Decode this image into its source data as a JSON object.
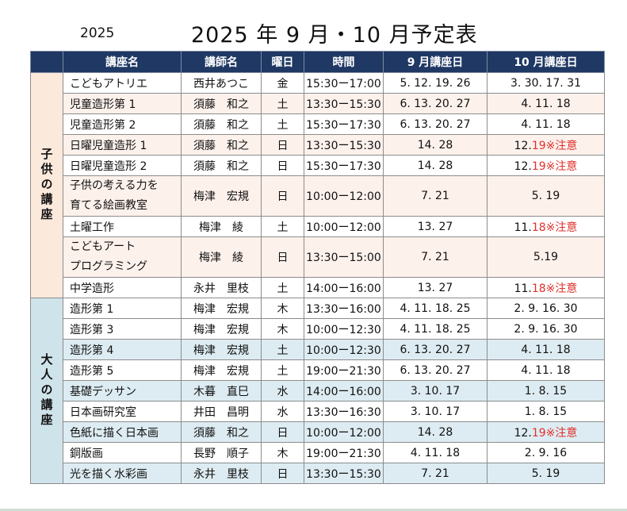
{
  "header": {
    "year": "2025",
    "title": "2025 年 9 月・10 月予定表"
  },
  "columns": [
    "講座名",
    "講師名",
    "曜日",
    "時間",
    "9 月講座日",
    "10 月講座日"
  ],
  "groups": {
    "child": "子供の講座",
    "adult": "大人の講座"
  },
  "rows": [
    {
      "course": "こどもアトリエ",
      "teacher": "西井あつこ",
      "day": "金",
      "time": "15:30ー17:00",
      "sep": "5. 12. 19. 26",
      "oct": "3. 30. 17. 31",
      "oct_note": ""
    },
    {
      "course": "児童造形第 1",
      "teacher": "須藤　和之",
      "day": "土",
      "time": "13:30ー15:30",
      "sep": "6. 13. 20. 27",
      "oct": "4. 11. 18",
      "oct_note": ""
    },
    {
      "course": "児童造形第 2",
      "teacher": "須藤　和之",
      "day": "土",
      "time": "15:30ー17:30",
      "sep": "6. 13. 20. 27",
      "oct": "4. 11. 18",
      "oct_note": ""
    },
    {
      "course": "日曜児童造形 1",
      "teacher": "須藤　和之",
      "day": "日",
      "time": "13:30ー15:30",
      "sep": "14. 28",
      "oct": "12.",
      "oct_note": "19※注意"
    },
    {
      "course": "日曜児童造形 2",
      "teacher": "須藤　和之",
      "day": "日",
      "time": "15:30ー17:30",
      "sep": "14. 28",
      "oct": "12.",
      "oct_note": "19※注意"
    },
    {
      "course_line1": "子供の考える力を",
      "course_line2": "育てる絵画教室",
      "teacher": "梅津　宏規",
      "day": "日",
      "time": "10:00ー12:00",
      "sep": "7. 21",
      "oct": "5. 19",
      "oct_note": ""
    },
    {
      "course": "土曜工作",
      "teacher": "梅津　綾",
      "day": "土",
      "time": "10:00ー12:00",
      "sep": "13. 27",
      "oct": "11.",
      "oct_note": "18※注意"
    },
    {
      "course_line1": "こどもアート",
      "course_line2": "プログラミング",
      "teacher": "梅津　綾",
      "day": "日",
      "time": "13:30ー15:00",
      "sep": "7. 21",
      "oct": "5.19",
      "oct_note": ""
    },
    {
      "course": "中学造形",
      "teacher": "永井　里枝",
      "day": "土",
      "time": "14:00ー16:00",
      "sep": "13. 27",
      "oct": "11.",
      "oct_note": "18※注意"
    },
    {
      "course": "造形第 1",
      "teacher": "梅津　宏規",
      "day": "木",
      "time": "13:30ー16:00",
      "sep": "4. 11. 18. 25",
      "oct": "2. 9. 16. 30",
      "oct_note": ""
    },
    {
      "course": "造形第 3",
      "teacher": "梅津　宏規",
      "day": "木",
      "time": "10:00ー12:30",
      "sep": "4. 11. 18. 25",
      "oct": "2. 9. 16. 30",
      "oct_note": ""
    },
    {
      "course": "造形第 4",
      "teacher": "梅津　宏規",
      "day": "土",
      "time": "10:00ー12:30",
      "sep": "6. 13. 20. 27",
      "oct": "4. 11. 18",
      "oct_note": ""
    },
    {
      "course": "造形第 5",
      "teacher": "梅津　宏規",
      "day": "土",
      "time": "19:00ー21:30",
      "sep": "6. 13. 20. 27",
      "oct": "4. 11. 18",
      "oct_note": ""
    },
    {
      "course": "基礎デッサン",
      "teacher": "木暮　直巳",
      "day": "水",
      "time": "14:00ー16:00",
      "sep": "3. 10. 17",
      "oct": "1. 8. 15",
      "oct_note": ""
    },
    {
      "course": "日本画研究室",
      "teacher": "井田　昌明",
      "day": "水",
      "time": "13:30ー16:30",
      "sep": "3. 10. 17",
      "oct": "1. 8. 15",
      "oct_note": ""
    },
    {
      "course": "色紙に描く日本画",
      "teacher": "須藤　和之",
      "day": "日",
      "time": "10:00ー12:00",
      "sep": "14. 28",
      "oct": "12.",
      "oct_note": "19※注意"
    },
    {
      "course": "銅版画",
      "teacher": "長野　順子",
      "day": "木",
      "time": "19:00ー21:30",
      "sep": "4. 11. 18",
      "oct": "2. 9. 16",
      "oct_note": ""
    },
    {
      "course": "光を描く水彩画",
      "teacher": "永井　里枝",
      "day": "日",
      "time": "13:30ー15:30",
      "sep": "7. 21",
      "oct": "5. 19",
      "oct_note": ""
    }
  ]
}
